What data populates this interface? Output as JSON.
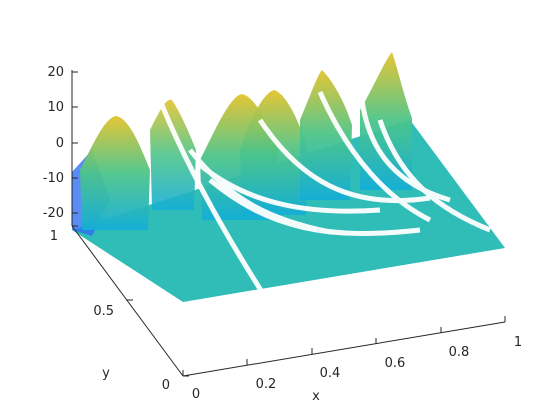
{
  "chart_data": {
    "type": "surface",
    "title": "",
    "xlabel": "x",
    "ylabel": "y",
    "zlabel": "",
    "xlim": [
      0,
      1
    ],
    "ylim": [
      0,
      1
    ],
    "zlim": [
      -20,
      20
    ],
    "x_ticks": [
      "0",
      "0.2",
      "0.4",
      "0.6",
      "0.8",
      "1"
    ],
    "y_ticks": [
      "0",
      "0.5",
      "1"
    ],
    "z_ticks": [
      "-20",
      "-10",
      "0",
      "10",
      "20"
    ],
    "grid": false,
    "legend": "none",
    "colormap": "parula",
    "colormap_colors": [
      "#3e26a8",
      "#2f6ff1",
      "#14aed7",
      "#29bbaa",
      "#7fc65a",
      "#e3b932",
      "#f9fb15"
    ],
    "series": [
      {
        "z_peaks_approx": [
          {
            "x": 0.0,
            "y": 0.75,
            "z": 10
          },
          {
            "x": 0.25,
            "y": 0.75,
            "z": 8
          },
          {
            "x": 0.5,
            "y": 0.75,
            "z": 14
          },
          {
            "x": 0.75,
            "y": 0.75,
            "z": 18
          },
          {
            "x": 0.2,
            "y": 0.6,
            "z": 9
          },
          {
            "x": 0.45,
            "y": 0.6,
            "z": 12
          }
        ],
        "z_floor_approx": -2
      }
    ]
  }
}
